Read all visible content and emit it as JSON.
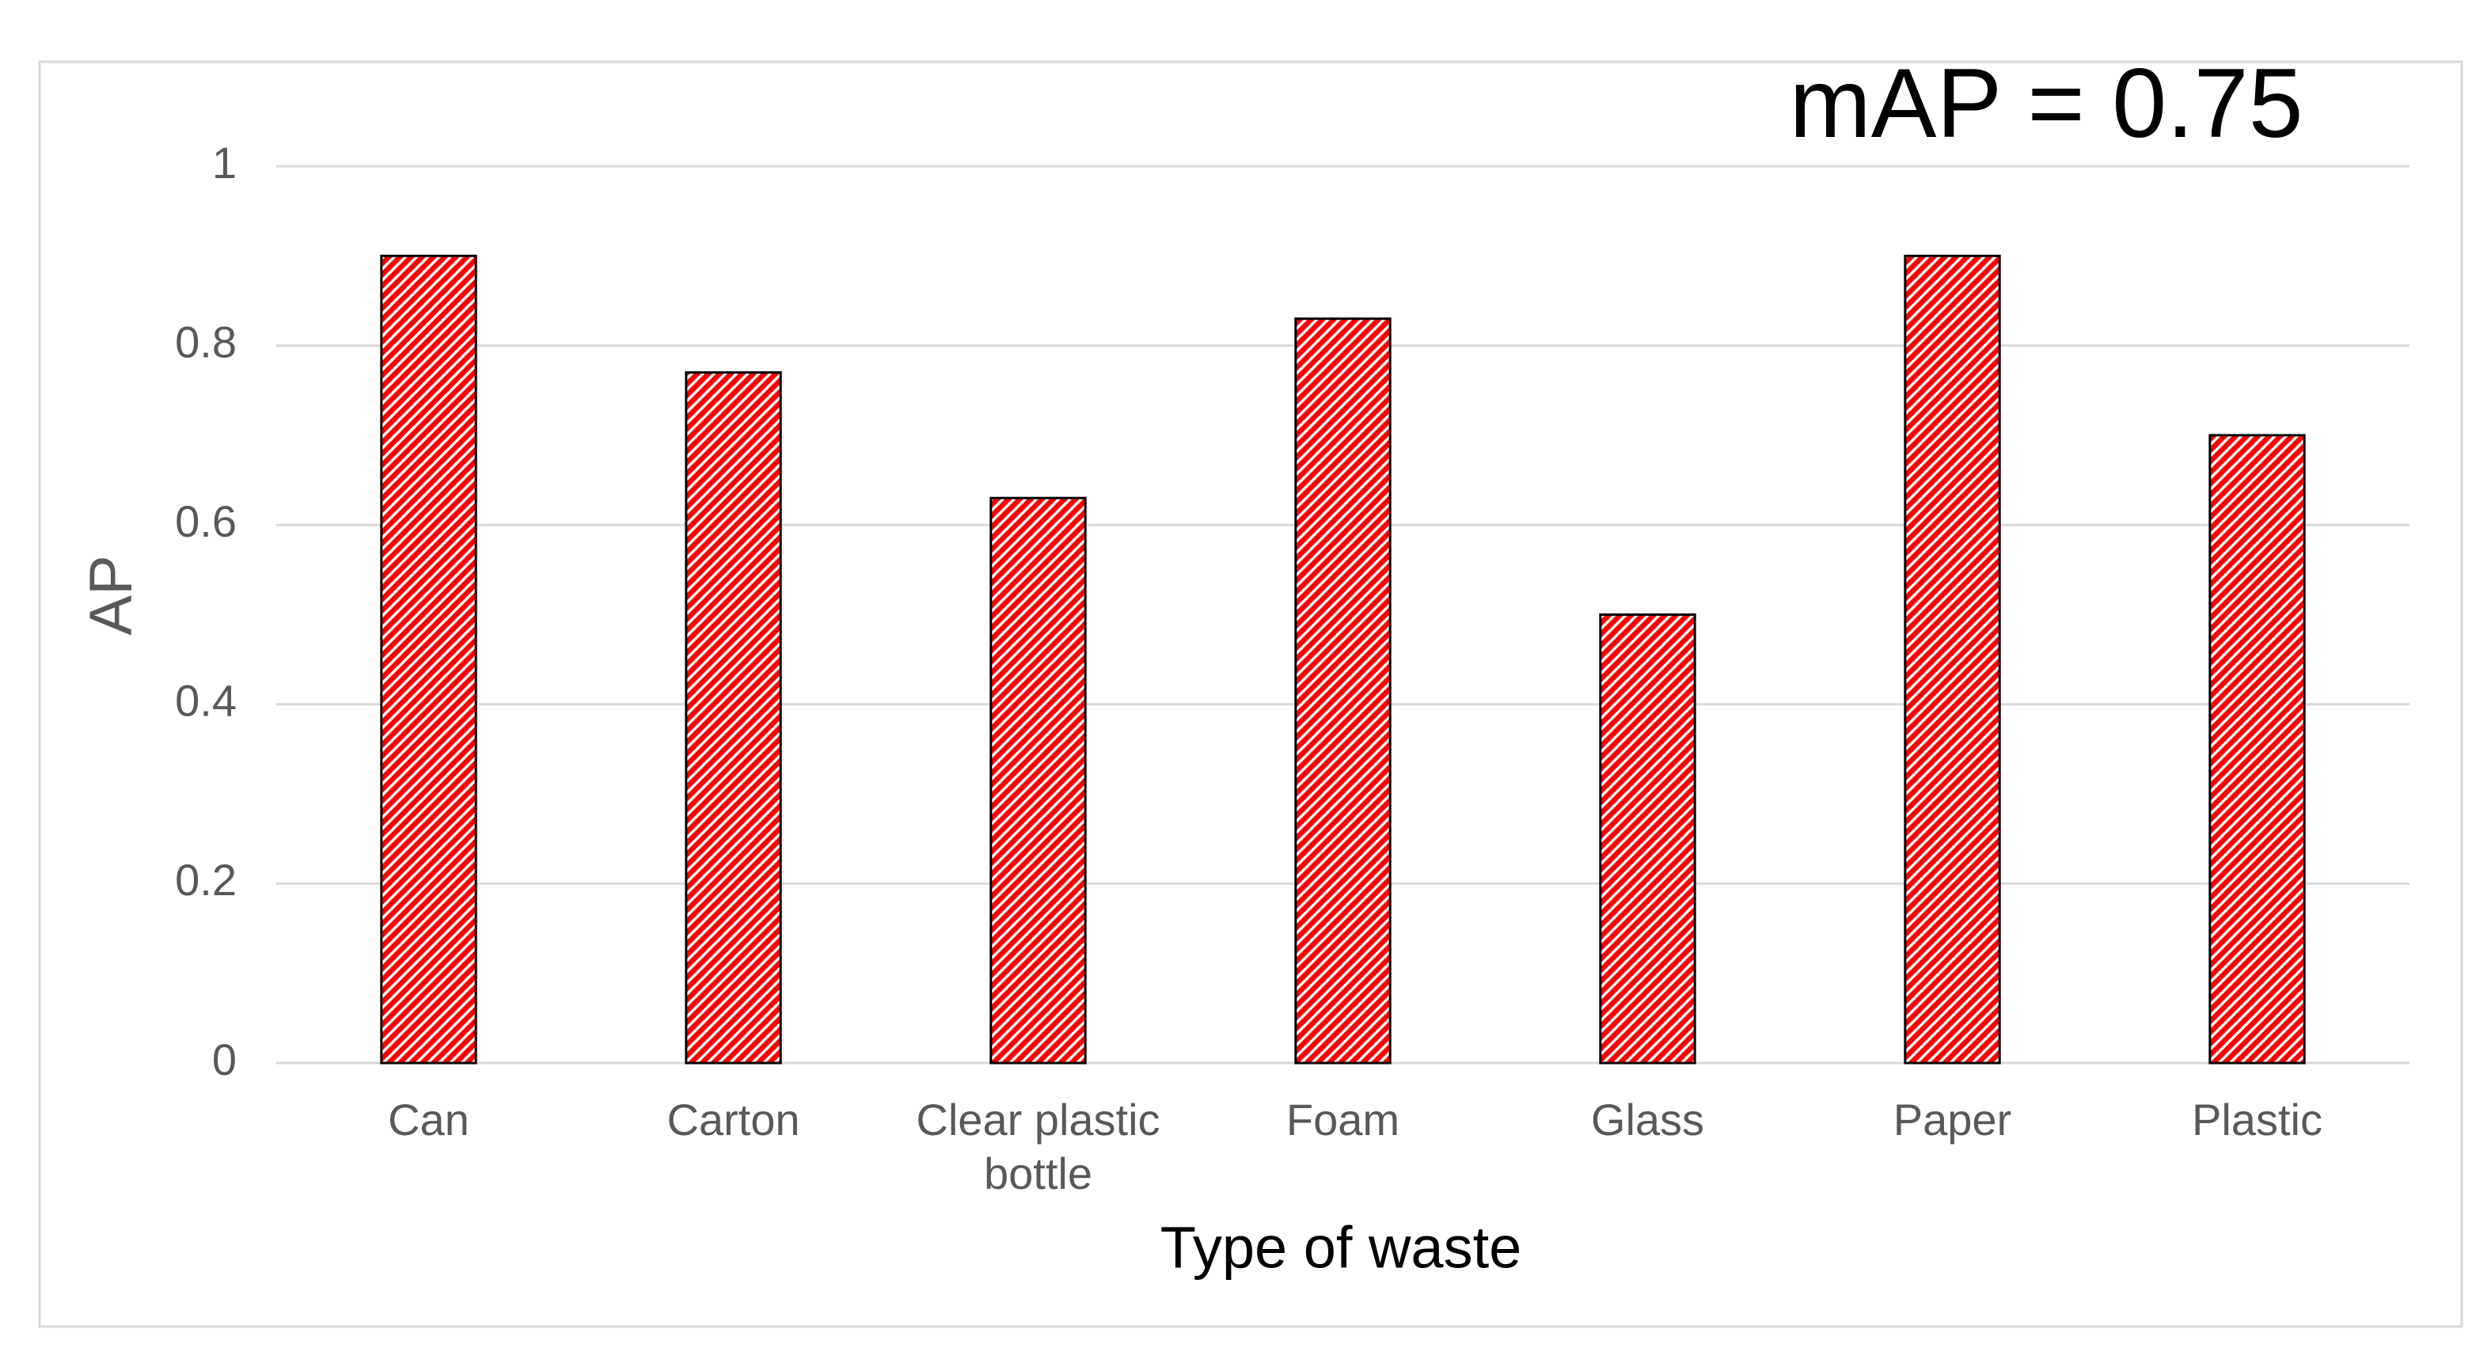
{
  "chart_data": {
    "type": "bar",
    "annotation": "mAP = 0.75",
    "xlabel": "Type of waste",
    "ylabel": "AP",
    "categories": [
      "Can",
      "Carton",
      "Clear plastic bottle",
      "Foam",
      "Glass",
      "Paper",
      "Plastic"
    ],
    "values": [
      0.9,
      0.77,
      0.63,
      0.83,
      0.5,
      0.9,
      0.7
    ],
    "color": "#ff0000",
    "ylim": [
      0,
      1
    ],
    "yticks": [
      0,
      0.2,
      0.4,
      0.6,
      0.8,
      1
    ],
    "grid": true
  }
}
